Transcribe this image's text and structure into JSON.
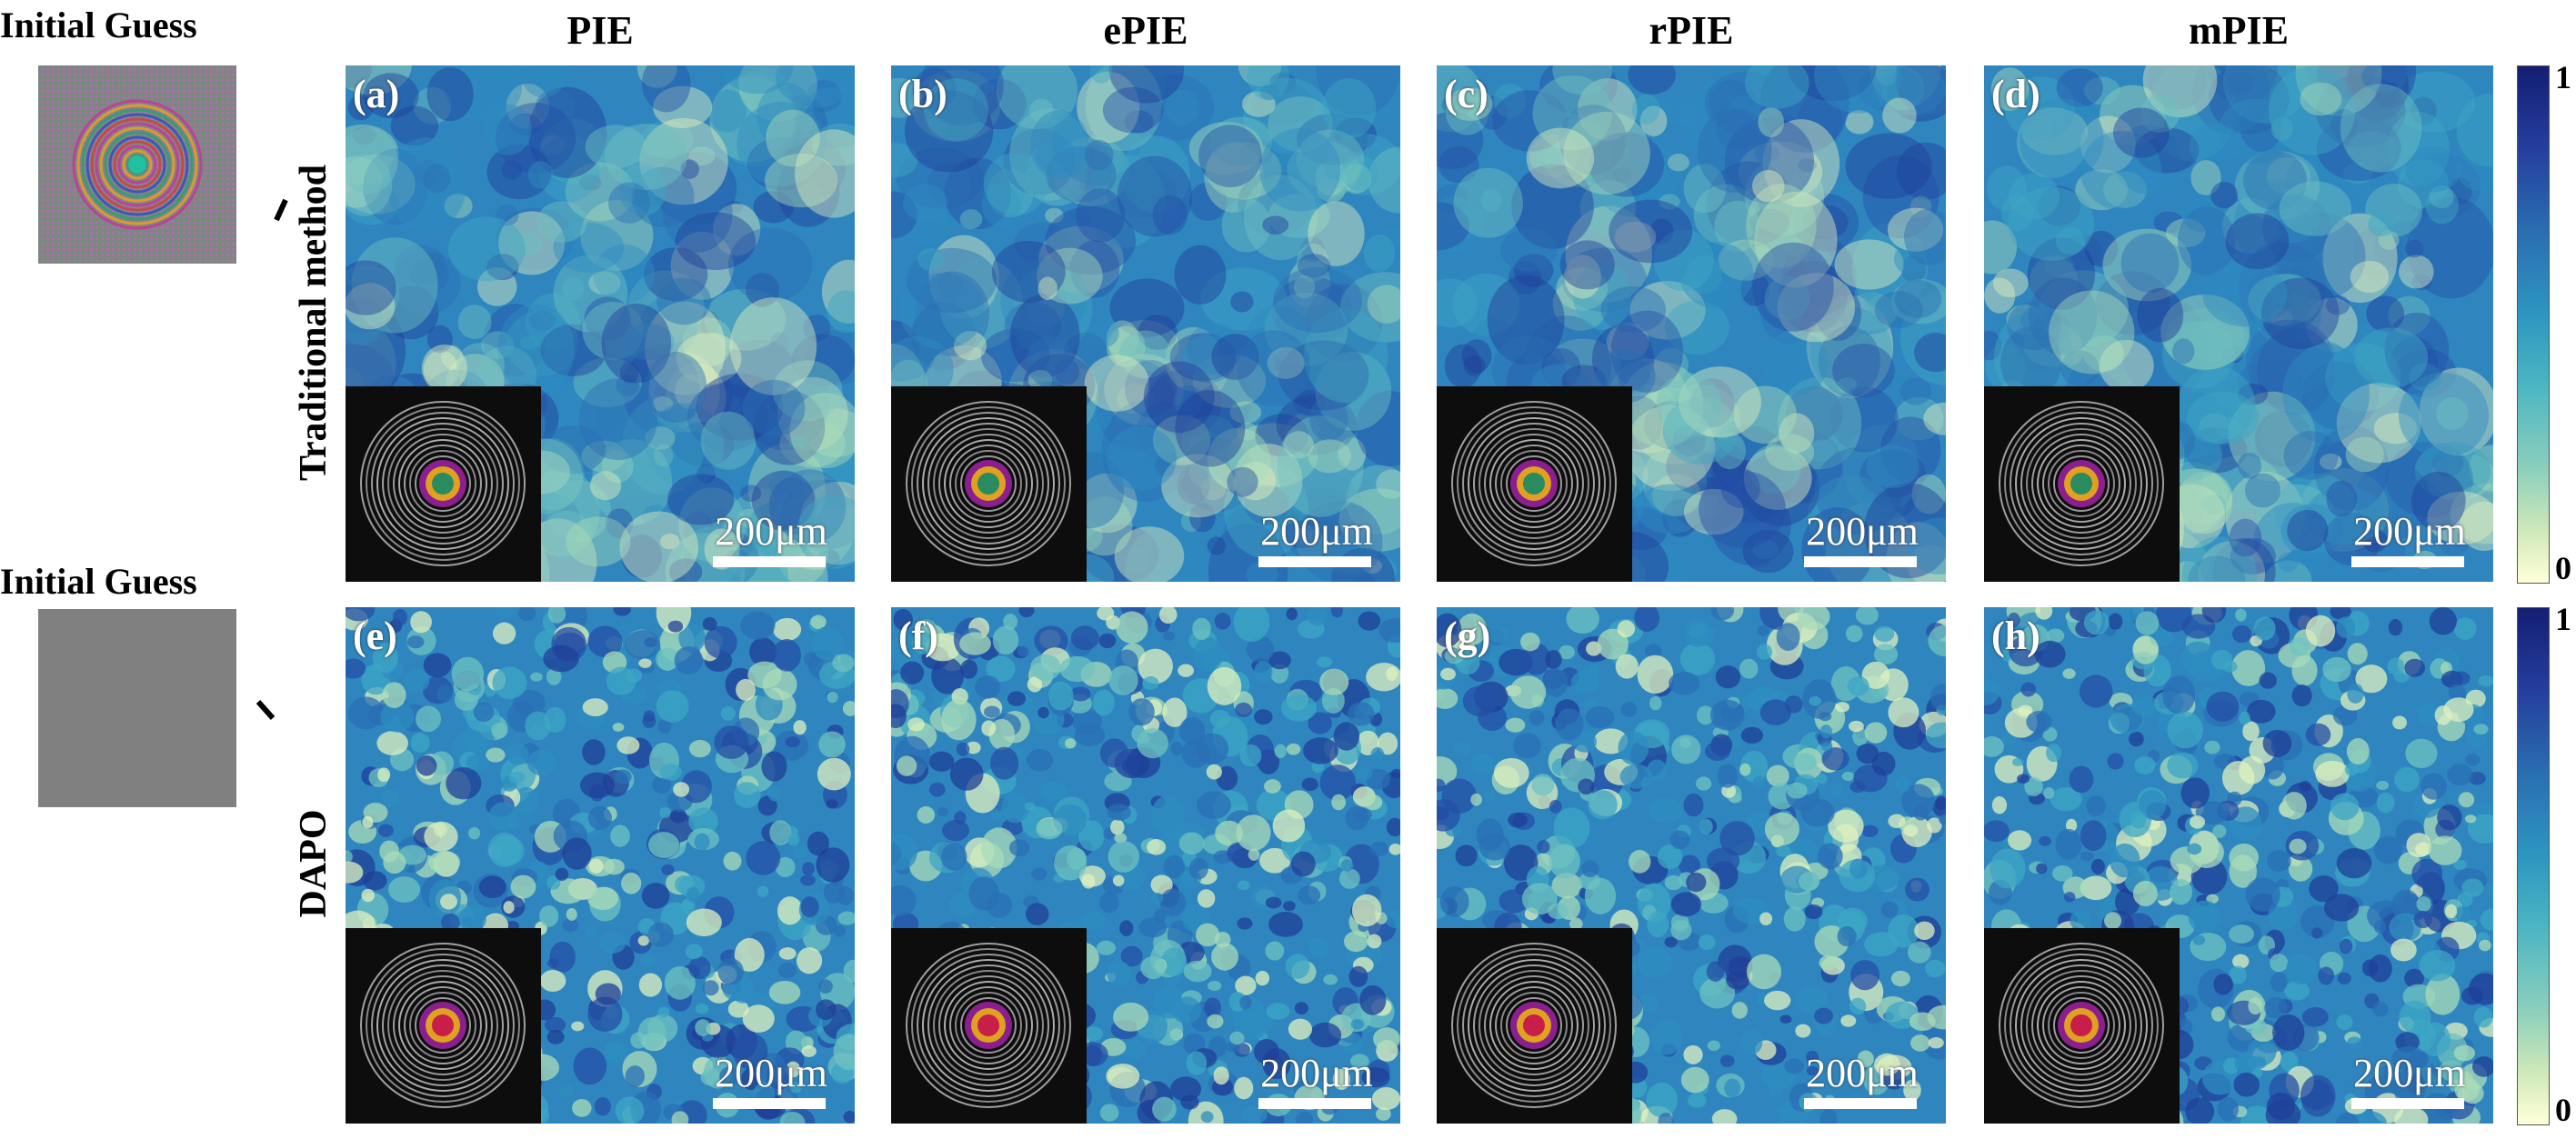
{
  "columns": [
    "PIE",
    "ePIE",
    "rPIE",
    "mPIE"
  ],
  "row_labels": [
    "Traditional method",
    "DAPO"
  ],
  "initial_guess_label": "Initial Guess",
  "panels": [
    {
      "label": "(a)",
      "scale": "200μm"
    },
    {
      "label": "(b)",
      "scale": "200μm"
    },
    {
      "label": "(c)",
      "scale": "200μm"
    },
    {
      "label": "(d)",
      "scale": "200μm"
    },
    {
      "label": "(e)",
      "scale": "200μm"
    },
    {
      "label": "(f)",
      "scale": "200μm"
    },
    {
      "label": "(g)",
      "scale": "200μm"
    },
    {
      "label": "(h)",
      "scale": "200μm"
    }
  ],
  "colorbar": {
    "max": "1",
    "min": "0"
  },
  "colors": {
    "map_dark": "#1e3c94",
    "map_mid": "#2e8fc4",
    "map_light": "#f1f7c6",
    "guess_gray": "#808080"
  }
}
